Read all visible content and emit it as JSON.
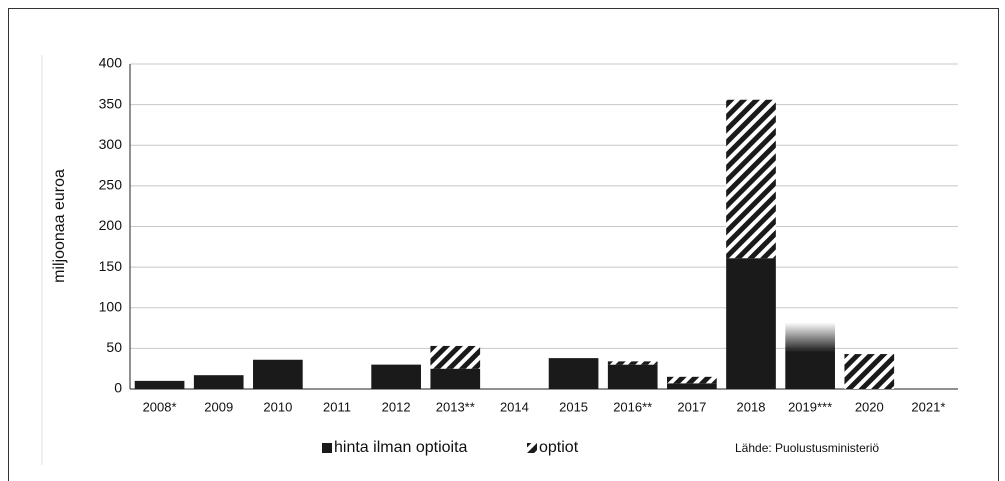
{
  "chart_data": {
    "type": "stacked_bar",
    "y_label": "miljoonaa euroa",
    "source": "Lähde: Puolustusministeriö",
    "categories": [
      "2008*",
      "2009",
      "2010",
      "2011",
      "2012",
      "2013**",
      "2014",
      "2015",
      "2016**",
      "2017",
      "2018",
      "2019***",
      "2020",
      "2021*"
    ],
    "series": [
      {
        "name": "hinta ilman optioita",
        "color": "#1a1a1a",
        "pattern": "solid",
        "values": [
          10,
          17,
          36,
          0,
          30,
          25,
          0,
          38,
          30,
          7,
          161,
          82,
          0,
          0
        ],
        "fade": [
          false,
          false,
          false,
          false,
          false,
          false,
          false,
          false,
          false,
          false,
          false,
          true,
          false,
          false
        ]
      },
      {
        "name": "optiot",
        "color": "#1a1a1a",
        "pattern": "hatch",
        "values": [
          0,
          0,
          0,
          0,
          0,
          28,
          0,
          0,
          4,
          8,
          195,
          0,
          43,
          0
        ]
      }
    ],
    "ylim": [
      0,
      400
    ],
    "yticks": [
      0,
      50,
      100,
      150,
      200,
      250,
      300,
      350,
      400
    ],
    "grid": true
  }
}
